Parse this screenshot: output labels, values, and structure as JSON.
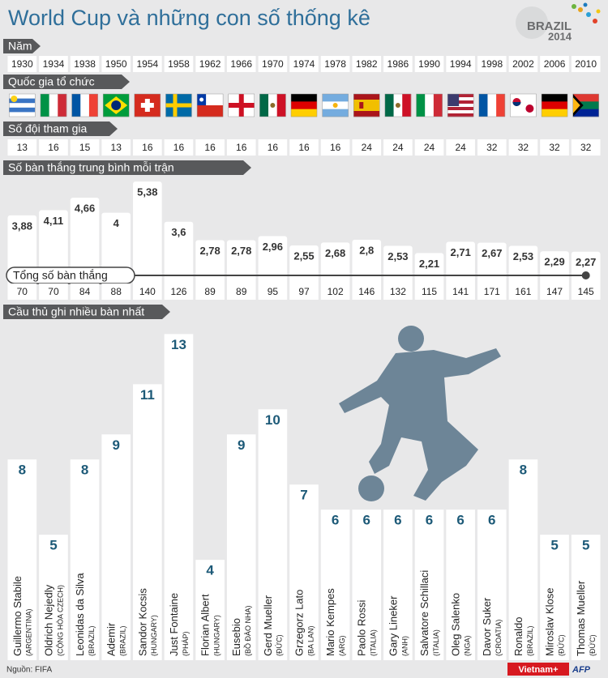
{
  "title": "World Cup và những con số thống kê",
  "logo": {
    "name": "BRAZIL",
    "year": "2014"
  },
  "rows": {
    "years_label": "Năm",
    "hosts_label": "Quốc gia tổ chức",
    "teams": {
      "label": "Số đội tham gia",
      "values": [
        13,
        16,
        15,
        13,
        16,
        16,
        16,
        16,
        16,
        16,
        16,
        24,
        24,
        24,
        24,
        32,
        32,
        32,
        32
      ]
    },
    "total_goals": {
      "label": "Tổng số bàn thắng",
      "values": [
        70,
        70,
        84,
        88,
        140,
        126,
        89,
        89,
        95,
        97,
        102,
        146,
        132,
        115,
        141,
        171,
        161,
        147,
        145
      ]
    }
  },
  "chart_data": [
    {
      "type": "bar",
      "title": "Số bàn thắng trung bình mỗi trận",
      "categories": [
        "1930",
        "1934",
        "1938",
        "1950",
        "1954",
        "1958",
        "1962",
        "1966",
        "1970",
        "1974",
        "1978",
        "1982",
        "1986",
        "1990",
        "1994",
        "1998",
        "2002",
        "2006",
        "2010"
      ],
      "values": [
        3.88,
        4.11,
        4.66,
        4,
        5.38,
        3.6,
        2.78,
        2.78,
        2.96,
        2.55,
        2.68,
        2.8,
        2.53,
        2.21,
        2.71,
        2.67,
        2.53,
        2.29,
        2.27
      ],
      "value_labels": [
        "3,88",
        "4,11",
        "4,66",
        "4",
        "5,38",
        "3,6",
        "2,78",
        "2,78",
        "2,96",
        "2,55",
        "2,68",
        "2,8",
        "2,53",
        "2,21",
        "2,71",
        "2,67",
        "2,53",
        "2,29",
        "2,27"
      ],
      "color": "#ffffff",
      "ylim": [
        0,
        5.6
      ]
    },
    {
      "type": "bar",
      "title": "Cầu thủ ghi nhiều bàn nhất",
      "categories": [
        "Guillermo Stabile",
        "Oldrich Nejedly",
        "Leonidas da Silva",
        "Ademir",
        "Sandor Kocsis",
        "Just Fontaine",
        "Florian Albert",
        "Eusebio",
        "Gerd Mueller",
        "Grzegorz Lato",
        "Mario Kempes",
        "Paolo Rossi",
        "Gary Lineker",
        "Salvatore Schillaci",
        "Oleg Salenko",
        "Davor Suker",
        "Ronaldo",
        "Miroslav Klose",
        "Thomas Mueller"
      ],
      "countries": [
        "(ARGENTINA)",
        "(CỘNG HÒA CZECH)",
        "(BRAZIL)",
        "(BRAZIL)",
        "(HUNGARY)",
        "(PHÁP)",
        "(HUNGARY)",
        "(BỒ ĐÀO NHA)",
        "(ĐỨC)",
        "(BA LAN)",
        "(ARG)",
        "(ITALIA)",
        "(ANH)",
        "(ITALIA)",
        "(NGA)",
        "(CROATIA)",
        "(BRAZIL)",
        "(ĐỨC)",
        "(ĐỨC)"
      ],
      "values": [
        8,
        5,
        8,
        9,
        11,
        13,
        4,
        9,
        10,
        7,
        6,
        6,
        6,
        6,
        6,
        6,
        8,
        5,
        5
      ],
      "color": "#ffffff",
      "label_color": "#1d5a78",
      "ylim": [
        0,
        13.4
      ]
    }
  ],
  "source": "Nguồn: FIFA",
  "credits": [
    "Vietnam+",
    "AFP"
  ]
}
